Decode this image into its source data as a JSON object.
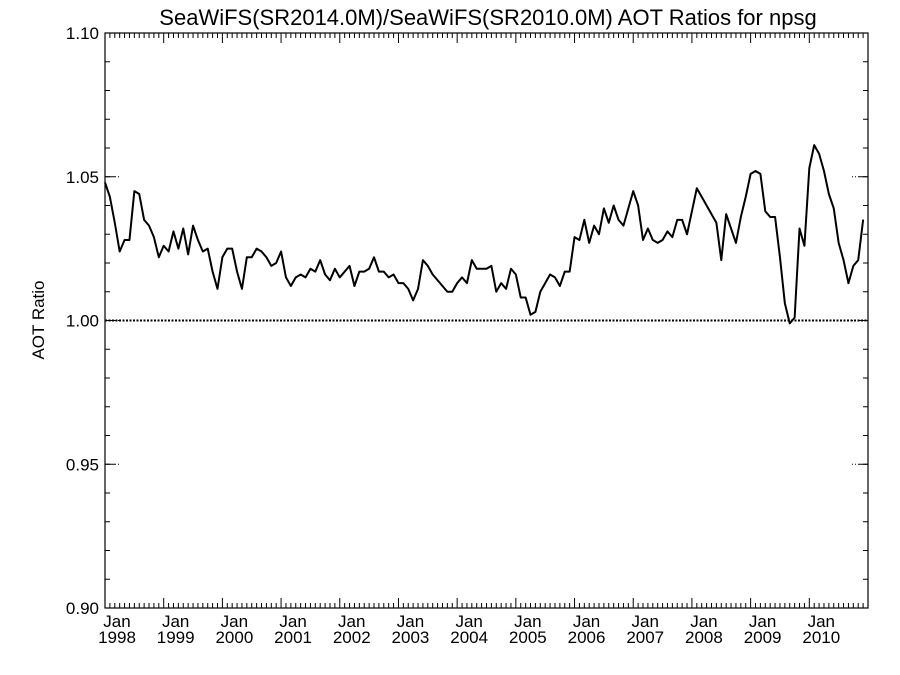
{
  "chart_data": {
    "type": "line",
    "title": "SeaWiFS(SR2014.0M)/SeaWiFS(SR2010.0M)  AOT Ratios for npsg",
    "xlabel": "",
    "ylabel": "AOT Ratio",
    "ylim": [
      0.9,
      1.1
    ],
    "xlim": [
      "1998-01",
      "2010-12"
    ],
    "y_ticks": [
      "0.90",
      "0.95",
      "1.00",
      "1.05",
      "1.10"
    ],
    "x_ticks": [
      {
        "month": "Jan",
        "year": "1998"
      },
      {
        "month": "Jan",
        "year": "1999"
      },
      {
        "month": "Jan",
        "year": "2000"
      },
      {
        "month": "Jan",
        "year": "2001"
      },
      {
        "month": "Jan",
        "year": "2002"
      },
      {
        "month": "Jan",
        "year": "2003"
      },
      {
        "month": "Jan",
        "year": "2004"
      },
      {
        "month": "Jan",
        "year": "2005"
      },
      {
        "month": "Jan",
        "year": "2006"
      },
      {
        "month": "Jan",
        "year": "2007"
      },
      {
        "month": "Jan",
        "year": "2008"
      },
      {
        "month": "Jan",
        "year": "2009"
      },
      {
        "month": "Jan",
        "year": "2010"
      }
    ],
    "reference_line": 1.0,
    "series": [
      {
        "start": "1998-01",
        "step": "1 month",
        "values": [
          1.048,
          1.043,
          1.034,
          1.024,
          1.028,
          1.028,
          1.045,
          1.044,
          1.035,
          1.033,
          1.029,
          1.022,
          1.026,
          1.024,
          1.031,
          1.025,
          1.032,
          1.023,
          1.033,
          1.028,
          1.024,
          1.025,
          1.017,
          1.011,
          1.022,
          1.025,
          1.025,
          1.017,
          1.011,
          1.022,
          1.022,
          1.025,
          1.024,
          1.022,
          1.019,
          1.02,
          1.024,
          1.015,
          1.012,
          1.015,
          1.016,
          1.015,
          1.018,
          1.017,
          1.021,
          1.016,
          1.014,
          1.018,
          1.015,
          1.017,
          1.019,
          1.012,
          1.017,
          1.017,
          1.018,
          1.022,
          1.017,
          1.017,
          1.015,
          1.016,
          1.013,
          1.013,
          1.011,
          1.007,
          1.011,
          1.021,
          1.019,
          1.016,
          1.014,
          1.012,
          1.01,
          1.01,
          1.013,
          1.015,
          1.013,
          1.021,
          1.018,
          1.018,
          1.018,
          1.019,
          1.01,
          1.013,
          1.011,
          1.018,
          1.016,
          1.008,
          1.008,
          1.002,
          1.003,
          1.01,
          1.013,
          1.016,
          1.015,
          1.012,
          1.017,
          1.017,
          1.029,
          1.028,
          1.035,
          1.027,
          1.033,
          1.03,
          1.039,
          1.034,
          1.04,
          1.035,
          1.033,
          1.039,
          1.045,
          1.04,
          1.028,
          1.032,
          1.028,
          1.027,
          1.028,
          1.031,
          1.029,
          1.035,
          1.035,
          1.03,
          1.038,
          1.046,
          1.043,
          1.04,
          1.037,
          1.034,
          1.021,
          1.037,
          1.032,
          1.027,
          1.036,
          1.043,
          1.051,
          1.052,
          1.051,
          1.038,
          1.036,
          1.036,
          1.022,
          1.006,
          0.999,
          1.001,
          1.032,
          1.026,
          1.053,
          1.061,
          1.058,
          1.052,
          1.044,
          1.039,
          1.027,
          1.021,
          1.013,
          1.019,
          1.021,
          1.035
        ]
      }
    ],
    "grid": false,
    "legend": "none"
  }
}
